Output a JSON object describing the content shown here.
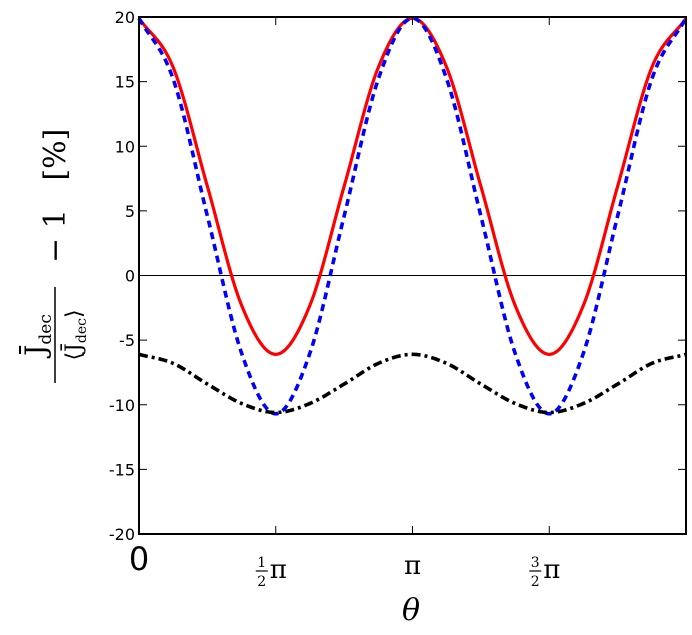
{
  "chart_data": {
    "type": "line",
    "title": "",
    "xlabel": "θ",
    "ylabel": {
      "numerator": "J̄",
      "numerator_sub": "dec",
      "denominator": "⟨J̄",
      "denominator_sub": "dec",
      "denominator_close": "⟩",
      "rest": "− 1   [%]"
    },
    "xlim": [
      0,
      6.2832
    ],
    "ylim": [
      -20,
      20
    ],
    "xticks": [
      {
        "value": 0,
        "label": "0"
      },
      {
        "value": 1.5708,
        "label": "π",
        "fraction": "1/2"
      },
      {
        "value": 3.1416,
        "label": "π"
      },
      {
        "value": 4.7124,
        "label": "π",
        "fraction": "3/2"
      }
    ],
    "yticks": [
      -20,
      -15,
      -10,
      -5,
      0,
      5,
      10,
      15,
      20
    ],
    "grid": false,
    "reference_line": 0,
    "series": [
      {
        "style": "solid",
        "color": "#ff0000",
        "x": [
          0,
          0.3927,
          0.7854,
          1.1781,
          1.5708,
          1.9635,
          2.3562,
          2.7489,
          3.1416,
          3.5343,
          3.927,
          4.3197,
          4.7124,
          5.1051,
          5.4978,
          5.8905,
          6.2832
        ],
        "y": [
          19.9,
          16.1,
          6.9,
          -2.3,
          -6.1,
          -2.3,
          6.9,
          16.1,
          19.9,
          16.1,
          6.9,
          -2.3,
          -6.1,
          -2.3,
          6.9,
          16.1,
          19.9
        ]
      },
      {
        "style": "dashed",
        "color": "#0000ff",
        "x": [
          0,
          0.3927,
          0.7854,
          1.1781,
          1.5708,
          1.9635,
          2.3562,
          2.7489,
          3.1416,
          3.5343,
          3.927,
          4.3197,
          4.7124,
          5.1051,
          5.4978,
          5.8905,
          6.2832
        ],
        "y": [
          19.9,
          15.2,
          4.6,
          -6.0,
          -10.7,
          -6.0,
          4.6,
          15.2,
          19.9,
          15.2,
          4.6,
          -6.0,
          -10.7,
          -6.0,
          4.6,
          15.2,
          19.9
        ]
      },
      {
        "style": "dashdot",
        "color": "#000000",
        "x": [
          0,
          0.3927,
          0.7854,
          1.1781,
          1.5708,
          1.9635,
          2.3562,
          2.7489,
          3.1416,
          3.5343,
          3.927,
          4.3197,
          4.7124,
          5.1051,
          5.4978,
          5.8905,
          6.2832
        ],
        "y": [
          -6.1,
          -6.8,
          -8.4,
          -9.9,
          -10.6,
          -9.9,
          -8.4,
          -6.8,
          -6.1,
          -6.8,
          -8.4,
          -9.9,
          -10.6,
          -9.9,
          -8.4,
          -6.8,
          -6.1
        ]
      }
    ]
  }
}
